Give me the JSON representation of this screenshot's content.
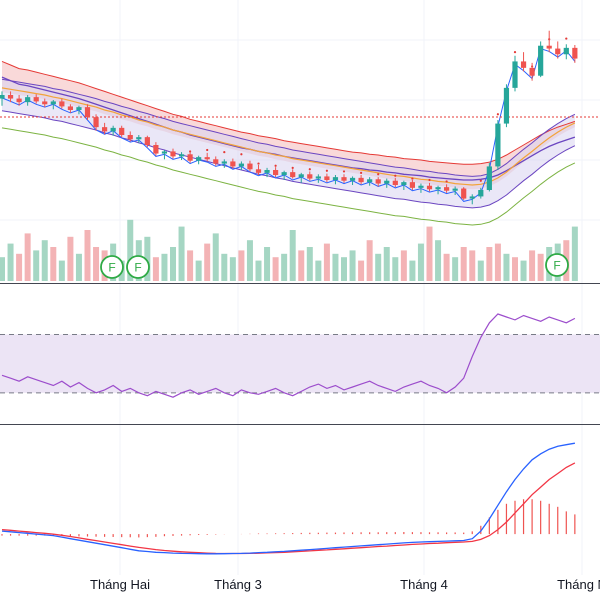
{
  "colors": {
    "up": "#26a69a",
    "down": "#ef5350",
    "vol_up": "#a5d6c3",
    "vol_down": "#f3b3b5",
    "ma_purple": "#6b46c1",
    "ma_red": "#e53935",
    "ma_orange": "#f2a33a",
    "ma_green": "#7cb342",
    "ma_blue": "#2962ff",
    "cloud_red": "#f7c9c9",
    "cloud_purple": "#d8d3f0",
    "rsi_band": "#ece4f5",
    "rsi_line": "#9c4dcc",
    "macd_line": "#2962ff",
    "signal_line": "#f23645",
    "macd_hist": "#ef5350",
    "badge": "#2eaa45",
    "separator": "#434651",
    "dashed": "#787b86"
  },
  "xaxis": {
    "labels": [
      "Tháng Hai",
      "Tháng 3",
      "Tháng 4",
      "Tháng N"
    ]
  },
  "badges": [
    "F",
    "F",
    "F"
  ],
  "chart_data": [
    {
      "type": "candlestick",
      "panel": "price",
      "title": "",
      "grid": true,
      "overlays": [
        "moving averages",
        "ichimoku cloud",
        "bollinger bands",
        "parabolic sar"
      ],
      "candles": [
        [
          95,
          96,
          94,
          95.5
        ],
        [
          95.5,
          96,
          94.5,
          95
        ],
        [
          95,
          95.5,
          94,
          94.5
        ],
        [
          94.5,
          95.5,
          94,
          95.2
        ],
        [
          95.2,
          95.6,
          94.3,
          94.6
        ],
        [
          94.6,
          95,
          93.8,
          94.2
        ],
        [
          94.2,
          94.8,
          93.5,
          94.6
        ],
        [
          94.6,
          95,
          93.6,
          93.9
        ],
        [
          93.9,
          94.2,
          93,
          93.4
        ],
        [
          93.4,
          94,
          92.8,
          93.8
        ],
        [
          93.8,
          94.2,
          92,
          92.4
        ],
        [
          92.4,
          92.8,
          90.5,
          91
        ],
        [
          91,
          91.6,
          90,
          90.4
        ],
        [
          90.4,
          91.2,
          89.8,
          90.9
        ],
        [
          90.9,
          91.2,
          89.6,
          89.9
        ],
        [
          89.9,
          90.4,
          89,
          89.3
        ],
        [
          89.3,
          89.9,
          88.8,
          89.6
        ],
        [
          89.6,
          89.8,
          88.2,
          88.5
        ],
        [
          88.5,
          88.9,
          87,
          87.3
        ],
        [
          87.3,
          87.8,
          86.5,
          87.6
        ],
        [
          87.6,
          88,
          86.6,
          86.9
        ],
        [
          86.9,
          87.5,
          86.4,
          87.2
        ],
        [
          87.2,
          87.6,
          86,
          86.3
        ],
        [
          86.3,
          87,
          85.8,
          86.8
        ],
        [
          86.8,
          87.4,
          86.2,
          86.5
        ],
        [
          86.5,
          86.9,
          85.6,
          85.9
        ],
        [
          85.9,
          86.5,
          85.3,
          86.2
        ],
        [
          86.2,
          86.6,
          85.2,
          85.5
        ],
        [
          85.5,
          86.2,
          85,
          85.9
        ],
        [
          85.9,
          86.3,
          84.8,
          85.1
        ],
        [
          85.1,
          85.7,
          84.3,
          84.6
        ],
        [
          84.6,
          85.3,
          84,
          85
        ],
        [
          85,
          85.4,
          84,
          84.3
        ],
        [
          84.3,
          84.9,
          83.6,
          84.7
        ],
        [
          84.7,
          85.1,
          83.8,
          84
        ],
        [
          84,
          84.6,
          83.2,
          84.4
        ],
        [
          84.4,
          84.8,
          83.5,
          83.8
        ],
        [
          83.8,
          84.4,
          83.2,
          84.1
        ],
        [
          84.1,
          84.5,
          83.3,
          83.6
        ],
        [
          83.6,
          84.3,
          83,
          84
        ],
        [
          84,
          84.4,
          83.2,
          83.5
        ],
        [
          83.5,
          84.1,
          82.9,
          83.9
        ],
        [
          83.9,
          84.3,
          83,
          83.3
        ],
        [
          83.3,
          84,
          82.8,
          83.7
        ],
        [
          83.7,
          84,
          82.7,
          83.1
        ],
        [
          83.1,
          83.8,
          82.5,
          83.5
        ],
        [
          83.5,
          83.9,
          82.6,
          82.9
        ],
        [
          82.9,
          83.5,
          82.2,
          83.3
        ],
        [
          83.3,
          83.6,
          82.2,
          82.5
        ],
        [
          82.5,
          83.1,
          81.8,
          82.8
        ],
        [
          82.8,
          83.2,
          82,
          82.3
        ],
        [
          82.3,
          82.8,
          81.6,
          82.6
        ],
        [
          82.6,
          83,
          81.8,
          82.1
        ],
        [
          82.1,
          82.7,
          81.5,
          82.4
        ],
        [
          82.4,
          82.6,
          80.8,
          81
        ],
        [
          81,
          81.6,
          80.2,
          81.3
        ],
        [
          81.3,
          82.5,
          81,
          82.2
        ],
        [
          82.2,
          86,
          82,
          85.5
        ],
        [
          85.5,
          92,
          85,
          91.5
        ],
        [
          91.5,
          97,
          91,
          96.5
        ],
        [
          96.5,
          101,
          96,
          100.2
        ],
        [
          100.2,
          101.5,
          98.8,
          99.3
        ],
        [
          99.3,
          100,
          97.5,
          98.2
        ],
        [
          98.2,
          103,
          98,
          102.4
        ],
        [
          102.4,
          104.5,
          101.5,
          102
        ],
        [
          102,
          103,
          100.6,
          101.2
        ],
        [
          101.2,
          102.6,
          100.5,
          102.1
        ],
        [
          102.1,
          102.5,
          100,
          100.6
        ]
      ],
      "volume": [
        [
          0.35,
          "up"
        ],
        [
          0.55,
          "up"
        ],
        [
          0.4,
          "down"
        ],
        [
          0.7,
          "down"
        ],
        [
          0.45,
          "up"
        ],
        [
          0.6,
          "up"
        ],
        [
          0.5,
          "down"
        ],
        [
          0.3,
          "up"
        ],
        [
          0.65,
          "down"
        ],
        [
          0.4,
          "up"
        ],
        [
          0.75,
          "down"
        ],
        [
          0.5,
          "down"
        ],
        [
          0.45,
          "down"
        ],
        [
          0.55,
          "up"
        ],
        [
          0.3,
          "up"
        ],
        [
          0.9,
          "up"
        ],
        [
          0.6,
          "up"
        ],
        [
          0.65,
          "up"
        ],
        [
          0.35,
          "down"
        ],
        [
          0.4,
          "up"
        ],
        [
          0.5,
          "up"
        ],
        [
          0.8,
          "up"
        ],
        [
          0.45,
          "down"
        ],
        [
          0.3,
          "up"
        ],
        [
          0.55,
          "down"
        ],
        [
          0.7,
          "up"
        ],
        [
          0.4,
          "up"
        ],
        [
          0.35,
          "up"
        ],
        [
          0.45,
          "down"
        ],
        [
          0.6,
          "up"
        ],
        [
          0.3,
          "up"
        ],
        [
          0.5,
          "up"
        ],
        [
          0.35,
          "down"
        ],
        [
          0.4,
          "up"
        ],
        [
          0.75,
          "up"
        ],
        [
          0.45,
          "down"
        ],
        [
          0.5,
          "up"
        ],
        [
          0.3,
          "up"
        ],
        [
          0.55,
          "down"
        ],
        [
          0.4,
          "up"
        ],
        [
          0.35,
          "up"
        ],
        [
          0.45,
          "up"
        ],
        [
          0.3,
          "down"
        ],
        [
          0.6,
          "down"
        ],
        [
          0.4,
          "up"
        ],
        [
          0.5,
          "up"
        ],
        [
          0.35,
          "up"
        ],
        [
          0.45,
          "down"
        ],
        [
          0.3,
          "up"
        ],
        [
          0.55,
          "up"
        ],
        [
          0.8,
          "down"
        ],
        [
          0.6,
          "up"
        ],
        [
          0.4,
          "down"
        ],
        [
          0.35,
          "up"
        ],
        [
          0.5,
          "down"
        ],
        [
          0.45,
          "down"
        ],
        [
          0.3,
          "up"
        ],
        [
          0.5,
          "down"
        ],
        [
          0.55,
          "down"
        ],
        [
          0.4,
          "up"
        ],
        [
          0.35,
          "down"
        ],
        [
          0.3,
          "up"
        ],
        [
          0.45,
          "down"
        ],
        [
          0.4,
          "down"
        ],
        [
          0.5,
          "up"
        ],
        [
          0.55,
          "up"
        ],
        [
          0.6,
          "down"
        ],
        [
          0.8,
          "up"
        ]
      ],
      "ma_slow": [
        98,
        97.5,
        97,
        96.8,
        96.5,
        96.2,
        95.9,
        95.6,
        95.3,
        95,
        94.6,
        94.2,
        93.8,
        93.4,
        93,
        92.6,
        92.2,
        91.8,
        91.4,
        91,
        90.6,
        90.3,
        89.9,
        89.6,
        89.3,
        89,
        88.7,
        88.4,
        88.1,
        87.9,
        87.6,
        87.4,
        87.2,
        86.9,
        86.7,
        86.5,
        86.3,
        86.1,
        85.9,
        85.7,
        85.5,
        85.3,
        85.2,
        85,
        84.9,
        84.7,
        84.6,
        84.4,
        84.3,
        84.2,
        84,
        83.9,
        83.8,
        83.7,
        83.6,
        83.6,
        83.7,
        83.9,
        84.3,
        84.9,
        85.6,
        86.3,
        87,
        87.7,
        88.3,
        88.8,
        89.2,
        89.6
      ],
      "ma_mid": [
        96.5,
        96.3,
        96.1,
        95.9,
        95.7,
        95.5,
        95.2,
        95,
        94.7,
        94.4,
        94.1,
        93.8,
        93.4,
        93.1,
        92.7,
        92.4,
        92,
        91.7,
        91.3,
        91,
        90.6,
        90.3,
        90,
        89.7,
        89.4,
        89.1,
        88.8,
        88.5,
        88.2,
        87.9,
        87.6,
        87.4,
        87.1,
        86.9,
        86.6,
        86.4,
        86.2,
        86,
        85.8,
        85.6,
        85.4,
        85.2,
        85,
        84.8,
        84.6,
        84.4,
        84.2,
        84.1,
        83.9,
        83.7,
        83.6,
        83.4,
        83.3,
        83.1,
        83,
        82.9,
        83,
        83.3,
        83.9,
        84.7,
        85.7,
        86.7,
        87.6,
        88.6,
        89.5,
        90.3,
        91,
        91.6
      ],
      "rsi": [
        42,
        40,
        38,
        41,
        39,
        37,
        35,
        38,
        34,
        37,
        33,
        30,
        32,
        35,
        31,
        33,
        30,
        28,
        31,
        29,
        27,
        30,
        32,
        29,
        31,
        33,
        30,
        28,
        32,
        30,
        29,
        31,
        33,
        30,
        28,
        31,
        34,
        36,
        33,
        35,
        32,
        34,
        36,
        38,
        35,
        33,
        31,
        34,
        36,
        38,
        35,
        33,
        30,
        34,
        40,
        55,
        68,
        78,
        84,
        82,
        80,
        83,
        81,
        79,
        82,
        80,
        78,
        81
      ],
      "macd": [
        0.2,
        0.15,
        0.1,
        0.05,
        0,
        -0.05,
        -0.1,
        -0.2,
        -0.3,
        -0.4,
        -0.5,
        -0.6,
        -0.7,
        -0.8,
        -0.9,
        -1,
        -1.1,
        -1.15,
        -1.2,
        -1.22,
        -1.25,
        -1.27,
        -1.28,
        -1.29,
        -1.3,
        -1.3,
        -1.29,
        -1.28,
        -1.27,
        -1.25,
        -1.22,
        -1.2,
        -1.17,
        -1.14,
        -1.1,
        -1.06,
        -1.02,
        -0.98,
        -0.94,
        -0.9,
        -0.86,
        -0.82,
        -0.78,
        -0.74,
        -0.7,
        -0.66,
        -0.62,
        -0.58,
        -0.55,
        -0.52,
        -0.5,
        -0.48,
        -0.46,
        -0.44,
        -0.42,
        -0.3,
        0.2,
        1,
        1.9,
        2.8,
        3.6,
        4.3,
        4.9,
        5.3,
        5.6,
        5.8,
        5.9,
        6
      ],
      "signal": [
        0.3,
        0.25,
        0.2,
        0.15,
        0.1,
        0.05,
        0,
        -0.08,
        -0.16,
        -0.25,
        -0.34,
        -0.43,
        -0.52,
        -0.61,
        -0.7,
        -0.79,
        -0.88,
        -0.95,
        -1.02,
        -1.08,
        -1.13,
        -1.17,
        -1.2,
        -1.23,
        -1.25,
        -1.27,
        -1.28,
        -1.28,
        -1.28,
        -1.27,
        -1.26,
        -1.24,
        -1.22,
        -1.2,
        -1.17,
        -1.14,
        -1.11,
        -1.07,
        -1.04,
        -1,
        -0.97,
        -0.93,
        -0.9,
        -0.86,
        -0.82,
        -0.79,
        -0.75,
        -0.72,
        -0.68,
        -0.65,
        -0.62,
        -0.6,
        -0.57,
        -0.55,
        -0.52,
        -0.48,
        -0.35,
        -0.1,
        0.3,
        0.8,
        1.4,
        2,
        2.6,
        3.1,
        3.6,
        4,
        4.4,
        4.7
      ]
    }
  ]
}
